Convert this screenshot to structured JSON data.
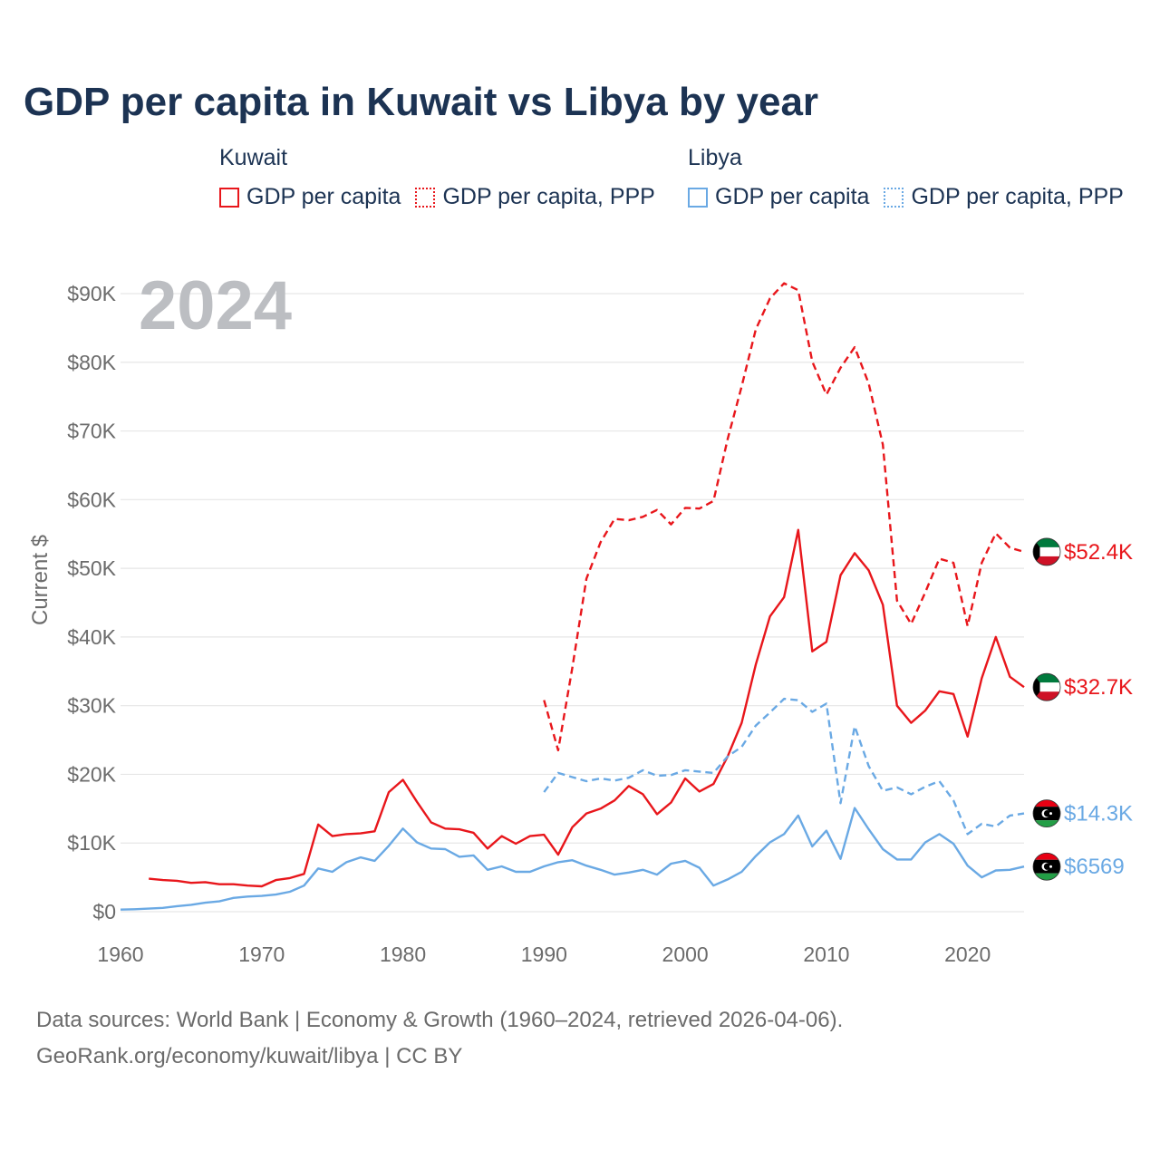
{
  "title": "GDP per capita in Kuwait vs Libya by year",
  "legend": {
    "groups": [
      {
        "name": "Kuwait",
        "color": "#e8161b",
        "items": [
          {
            "label": "GDP per capita",
            "style": "solid"
          },
          {
            "label": "GDP per capita, PPP",
            "style": "dotted"
          }
        ]
      },
      {
        "name": "Libya",
        "color": "#6aa9e4",
        "items": [
          {
            "label": "GDP per capita",
            "style": "solid"
          },
          {
            "label": "GDP per capita, PPP",
            "style": "dotted"
          }
        ]
      }
    ]
  },
  "footer": {
    "line1": "Data sources: World Bank | Economy & Growth (1960–2024, retrieved 2026-04-06).",
    "line2": "GeoRank.org/economy/kuwait/libya | CC BY"
  },
  "chart_data": {
    "type": "line",
    "year_label": "2024",
    "ylabel": "Current $",
    "xlim": [
      1960,
      2024
    ],
    "ylim": [
      0,
      90000
    ],
    "x_ticks": [
      1960,
      1970,
      1980,
      1990,
      2000,
      2010,
      2020
    ],
    "y_ticks": [
      0,
      10000,
      20000,
      30000,
      40000,
      50000,
      60000,
      70000,
      80000,
      90000
    ],
    "y_tick_labels": [
      "$0",
      "$10K",
      "$20K",
      "$30K",
      "$40K",
      "$50K",
      "$60K",
      "$70K",
      "$80K",
      "$90K"
    ],
    "grid": true,
    "series": [
      {
        "name": "Kuwait GDP per capita, PPP",
        "country": "Kuwait",
        "color": "#e8161b",
        "dash": "dashed",
        "end_label": "$52.4K",
        "flag": "kuwait",
        "x": [
          1990,
          1991,
          1992,
          1993,
          1994,
          1995,
          1996,
          1997,
          1998,
          1999,
          2000,
          2001,
          2002,
          2003,
          2004,
          2005,
          2006,
          2007,
          2008,
          2009,
          2010,
          2011,
          2012,
          2013,
          2014,
          2015,
          2016,
          2017,
          2018,
          2019,
          2020,
          2021,
          2022,
          2023,
          2024
        ],
        "values": [
          30800,
          23500,
          35500,
          48500,
          53800,
          57200,
          57000,
          57500,
          58500,
          56400,
          58800,
          58700,
          59800,
          68800,
          76500,
          84800,
          89300,
          91500,
          90500,
          80100,
          75300,
          79200,
          82200,
          76900,
          68000,
          45300,
          41900,
          46500,
          51400,
          50800,
          41600,
          50800,
          55100,
          53000,
          52400
        ]
      },
      {
        "name": "Kuwait GDP per capita",
        "country": "Kuwait",
        "color": "#e8161b",
        "dash": "solid",
        "end_label": "$32.7K",
        "flag": "kuwait",
        "x": [
          1962,
          1963,
          1964,
          1965,
          1966,
          1967,
          1968,
          1969,
          1970,
          1971,
          1972,
          1973,
          1974,
          1975,
          1976,
          1977,
          1978,
          1979,
          1980,
          1981,
          1982,
          1983,
          1984,
          1985,
          1986,
          1987,
          1988,
          1989,
          1990,
          1991,
          1992,
          1993,
          1994,
          1995,
          1996,
          1997,
          1998,
          1999,
          2000,
          2001,
          2002,
          2003,
          2004,
          2005,
          2006,
          2007,
          2008,
          2009,
          2010,
          2011,
          2012,
          2013,
          2014,
          2015,
          2016,
          2017,
          2018,
          2019,
          2020,
          2021,
          2022,
          2023,
          2024
        ],
        "values": [
          4800,
          4600,
          4500,
          4200,
          4300,
          4000,
          4000,
          3800,
          3700,
          4600,
          4900,
          5500,
          12700,
          11000,
          11300,
          11400,
          11700,
          17400,
          19200,
          16000,
          13000,
          12100,
          12000,
          11500,
          9200,
          11000,
          9900,
          11000,
          11200,
          8300,
          12300,
          14300,
          15000,
          16200,
          18300,
          17100,
          14200,
          15900,
          19400,
          17500,
          18600,
          22600,
          27500,
          36000,
          43000,
          45800,
          55600,
          37900,
          39300,
          49000,
          52200,
          49700,
          44700,
          30000,
          27500,
          29300,
          32100,
          31700,
          25500,
          34000,
          40000,
          34200,
          32700
        ]
      },
      {
        "name": "Libya GDP per capita, PPP",
        "country": "Libya",
        "color": "#6aa9e4",
        "dash": "dashed",
        "end_label": "$14.3K",
        "flag": "libya",
        "x": [
          1990,
          1991,
          1992,
          1993,
          1994,
          1995,
          1996,
          1997,
          1998,
          1999,
          2000,
          2001,
          2002,
          2003,
          2004,
          2005,
          2006,
          2007,
          2008,
          2009,
          2010,
          2011,
          2012,
          2013,
          2014,
          2015,
          2016,
          2017,
          2018,
          2019,
          2020,
          2021,
          2022,
          2023,
          2024
        ],
        "values": [
          17400,
          20200,
          19600,
          19000,
          19400,
          19100,
          19500,
          20600,
          19800,
          19900,
          20600,
          20400,
          20200,
          22600,
          24000,
          27100,
          29000,
          31000,
          30800,
          29100,
          30300,
          15800,
          27000,
          21200,
          17600,
          18100,
          17100,
          18200,
          19000,
          16200,
          11300,
          12800,
          12400,
          14000,
          14300
        ]
      },
      {
        "name": "Libya GDP per capita",
        "country": "Libya",
        "color": "#6aa9e4",
        "dash": "solid",
        "end_label": "$6569",
        "flag": "libya",
        "x": [
          1960,
          1961,
          1962,
          1963,
          1964,
          1965,
          1966,
          1967,
          1968,
          1969,
          1970,
          1971,
          1972,
          1973,
          1974,
          1975,
          1976,
          1977,
          1978,
          1979,
          1980,
          1981,
          1982,
          1983,
          1984,
          1985,
          1986,
          1987,
          1988,
          1989,
          1990,
          1991,
          1992,
          1993,
          1994,
          1995,
          1996,
          1997,
          1998,
          1999,
          2000,
          2001,
          2002,
          2003,
          2004,
          2005,
          2006,
          2007,
          2008,
          2009,
          2010,
          2011,
          2012,
          2013,
          2014,
          2015,
          2016,
          2017,
          2018,
          2019,
          2020,
          2021,
          2022,
          2023,
          2024
        ],
        "values": [
          300,
          350,
          450,
          550,
          800,
          1000,
          1300,
          1500,
          2000,
          2200,
          2300,
          2500,
          2900,
          3800,
          6300,
          5800,
          7200,
          7900,
          7400,
          9600,
          12100,
          10100,
          9200,
          9100,
          8000,
          8200,
          6100,
          6600,
          5800,
          5800,
          6600,
          7200,
          7500,
          6700,
          6100,
          5400,
          5700,
          6100,
          5400,
          7000,
          7400,
          6400,
          3800,
          4700,
          5800,
          8100,
          10100,
          11300,
          14000,
          9500,
          11800,
          7700,
          15100,
          12000,
          9100,
          7600,
          7600,
          10100,
          11300,
          9900,
          6700,
          5000,
          6000,
          6100,
          6569
        ]
      }
    ]
  }
}
